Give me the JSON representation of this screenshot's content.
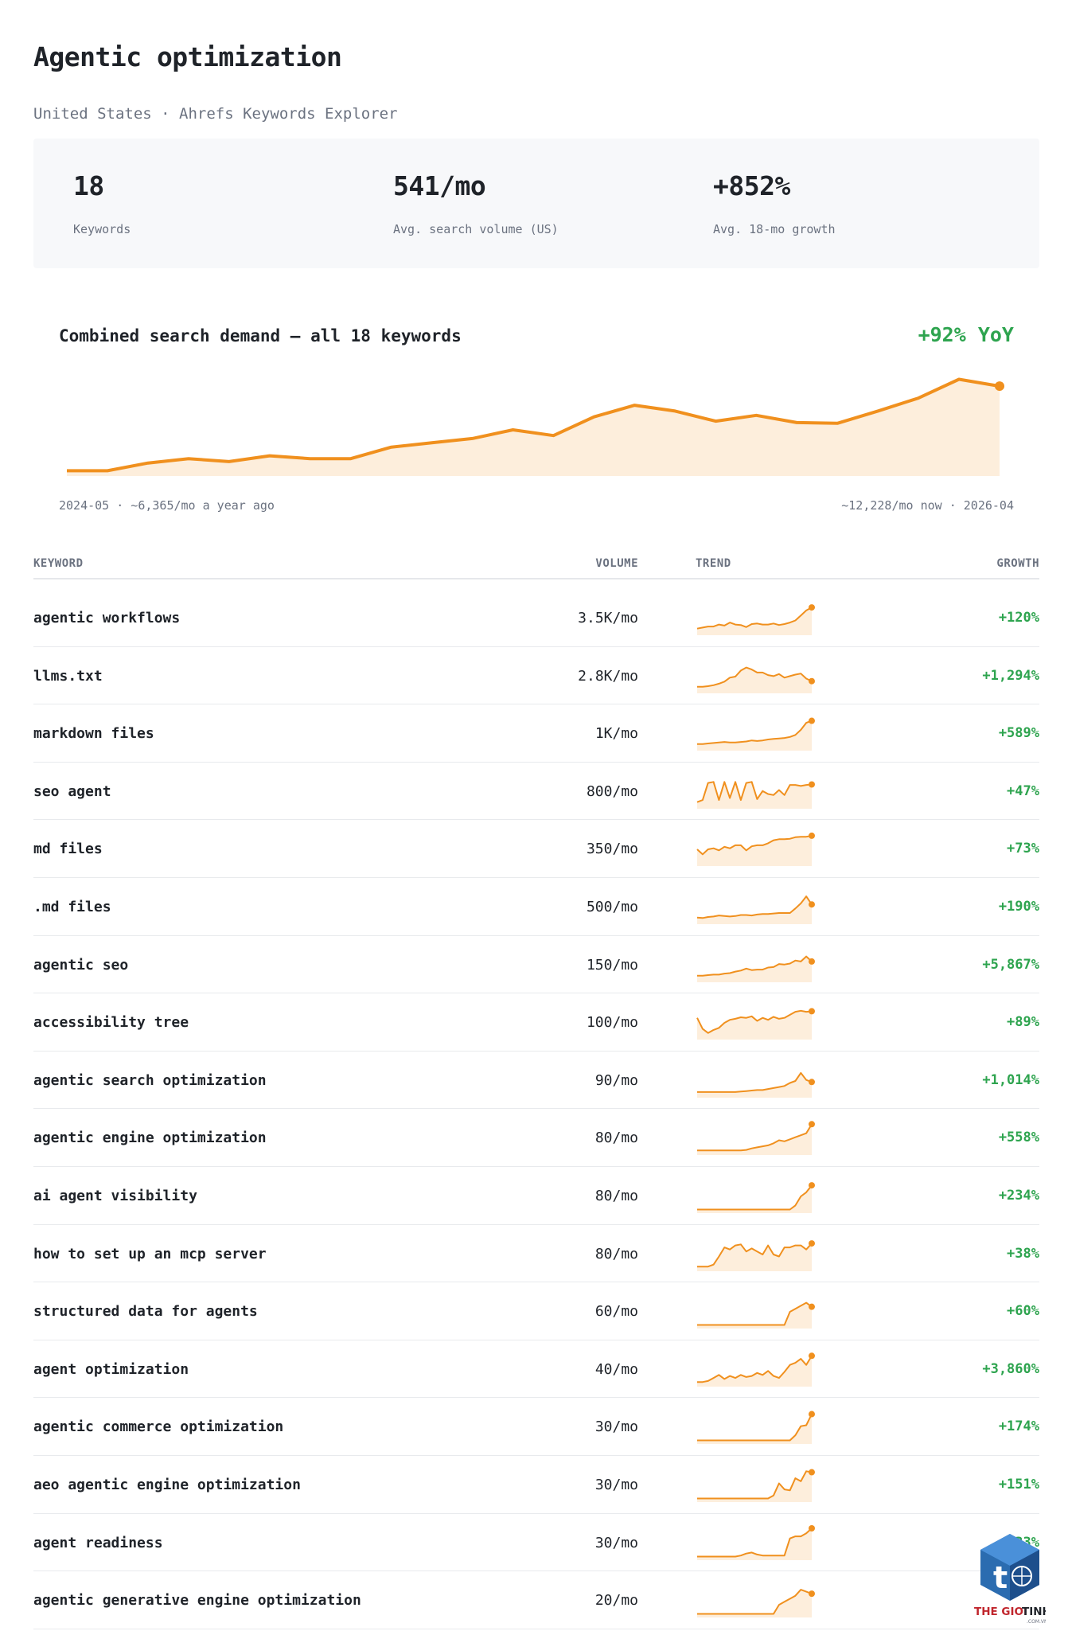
{
  "title": "Agentic optimization",
  "subtitle": "United States · Ahrefs Keywords Explorer",
  "stats": [
    {
      "value": "18",
      "label": "Keywords"
    },
    {
      "value": "541/mo",
      "label": "Avg. search volume (US)"
    },
    {
      "value": "+852%",
      "label": "Avg. 18-mo growth"
    }
  ],
  "colors": {
    "accent": "#f0901e",
    "fill": "#fdeedc",
    "positive": "#2ea44f"
  },
  "chart_data": [
    {
      "type": "area",
      "title": "Combined search demand — all 18 keywords",
      "annotation": "+92% YoY",
      "start_label": "2024-05 · ~6,365/mo a year ago",
      "end_label": "~12,228/mo now · 2026-04",
      "values": [
        6365,
        6365,
        6900,
        7200,
        7000,
        7400,
        7200,
        7200,
        8000,
        8300,
        8600,
        9200,
        8800,
        10100,
        10900,
        10500,
        9800,
        10200,
        9700,
        9650,
        10500,
        11400,
        12700,
        12228
      ],
      "ylim": [
        6000,
        13500
      ],
      "grid": false
    },
    {
      "type": "table",
      "columns": [
        "KEYWORD",
        "VOLUME",
        "TREND",
        "GROWTH"
      ],
      "rows": [
        {
          "keyword": "agentic workflows",
          "volume": "3.5K/mo",
          "growth": "+120%",
          "trend": [
            10,
            12,
            14,
            14,
            18,
            16,
            22,
            18,
            17,
            13,
            19,
            20,
            18,
            18,
            20,
            17,
            19,
            22,
            26,
            36,
            46,
            52
          ]
        },
        {
          "keyword": "llms.txt",
          "volume": "2.8K/mo",
          "growth": "+1,294%",
          "trend": [
            10,
            10,
            11,
            13,
            16,
            20,
            28,
            30,
            42,
            48,
            44,
            38,
            38,
            33,
            31,
            35,
            28,
            31,
            34,
            36,
            26,
            21
          ]
        },
        {
          "keyword": "markdown files",
          "volume": "1K/mo",
          "growth": "+589%",
          "trend": [
            10,
            10,
            11,
            12,
            13,
            14,
            13,
            13,
            14,
            15,
            17,
            16,
            17,
            19,
            20,
            21,
            22,
            24,
            28,
            38,
            52,
            56
          ]
        },
        {
          "keyword": "seo agent",
          "volume": "800/mo",
          "growth": "+47%",
          "trend": [
            10,
            14,
            48,
            50,
            14,
            50,
            18,
            50,
            14,
            48,
            50,
            16,
            32,
            26,
            24,
            34,
            24,
            44,
            44,
            42,
            44,
            45
          ]
        },
        {
          "keyword": "md files",
          "volume": "350/mo",
          "growth": "+73%",
          "trend": [
            30,
            20,
            30,
            32,
            28,
            35,
            32,
            38,
            38,
            28,
            36,
            38,
            38,
            42,
            48,
            50,
            50,
            51,
            54,
            55,
            55,
            57
          ]
        },
        {
          "keyword": ".md files",
          "volume": "500/mo",
          "growth": "+190%",
          "trend": [
            10,
            9,
            11,
            12,
            14,
            13,
            12,
            13,
            15,
            15,
            14,
            16,
            17,
            17,
            18,
            19,
            19,
            19,
            28,
            38,
            52,
            36
          ]
        },
        {
          "keyword": "agentic seo",
          "volume": "150/mo",
          "growth": "+5,867%",
          "trend": [
            10,
            10,
            11,
            12,
            12,
            14,
            15,
            18,
            20,
            24,
            21,
            22,
            22,
            26,
            27,
            33,
            32,
            34,
            40,
            38,
            48,
            38
          ]
        },
        {
          "keyword": "accessibility tree",
          "volume": "100/mo",
          "growth": "+89%",
          "trend": [
            40,
            18,
            10,
            16,
            20,
            30,
            36,
            38,
            41,
            40,
            43,
            34,
            40,
            36,
            42,
            38,
            40,
            46,
            52,
            54,
            52,
            53
          ]
        },
        {
          "keyword": "agentic search optimization",
          "volume": "90/mo",
          "growth": "+1,014%",
          "trend": [
            8,
            8,
            8,
            8,
            8,
            8,
            8,
            8,
            9,
            10,
            11,
            12,
            12,
            14,
            16,
            18,
            20,
            26,
            30,
            46,
            32,
            28
          ]
        },
        {
          "keyword": "agentic engine optimization",
          "volume": "80/mo",
          "growth": "+558%",
          "trend": [
            6,
            6,
            6,
            6,
            6,
            6,
            6,
            6,
            6,
            7,
            10,
            12,
            14,
            16,
            20,
            26,
            24,
            28,
            32,
            36,
            40,
            58
          ]
        },
        {
          "keyword": "ai agent visibility",
          "volume": "80/mo",
          "growth": "+234%",
          "trend": [
            4,
            4,
            4,
            4,
            4,
            4,
            4,
            4,
            4,
            4,
            4,
            4,
            4,
            4,
            4,
            4,
            4,
            4,
            12,
            30,
            38,
            52
          ]
        },
        {
          "keyword": "how to set up an mcp server",
          "volume": "80/mo",
          "growth": "+38%",
          "trend": [
            6,
            6,
            6,
            10,
            26,
            44,
            40,
            48,
            50,
            36,
            42,
            36,
            30,
            48,
            30,
            26,
            44,
            44,
            48,
            48,
            40,
            52
          ]
        },
        {
          "keyword": "structured data for agents",
          "volume": "60/mo",
          "growth": "+60%",
          "trend": [
            4,
            4,
            4,
            4,
            4,
            4,
            4,
            4,
            4,
            4,
            4,
            4,
            4,
            4,
            4,
            4,
            4,
            30,
            36,
            42,
            48,
            40
          ]
        },
        {
          "keyword": "agent optimization",
          "volume": "40/mo",
          "growth": "+3,860%",
          "trend": [
            6,
            6,
            8,
            14,
            20,
            12,
            18,
            14,
            20,
            16,
            18,
            24,
            20,
            28,
            18,
            14,
            26,
            40,
            44,
            52,
            40,
            58
          ]
        },
        {
          "keyword": "agentic commerce optimization",
          "volume": "30/mo",
          "growth": "+174%",
          "trend": [
            4,
            4,
            4,
            4,
            4,
            4,
            4,
            4,
            4,
            4,
            4,
            4,
            4,
            4,
            4,
            4,
            4,
            4,
            14,
            32,
            34,
            56
          ]
        },
        {
          "keyword": "aeo agentic engine optimization",
          "volume": "30/mo",
          "growth": "+151%",
          "trend": [
            4,
            4,
            4,
            4,
            4,
            4,
            4,
            4,
            4,
            4,
            4,
            4,
            4,
            4,
            10,
            34,
            22,
            20,
            44,
            38,
            58,
            56
          ]
        },
        {
          "keyword": "agent readiness",
          "volume": "30/mo",
          "growth": "+833%",
          "trend": [
            4,
            4,
            4,
            4,
            4,
            4,
            4,
            4,
            6,
            10,
            12,
            8,
            6,
            6,
            6,
            6,
            6,
            40,
            44,
            44,
            50,
            60
          ]
        },
        {
          "keyword": "agentic generative engine optimization",
          "volume": "20/mo",
          "growth": "",
          "trend": [
            4,
            4,
            4,
            4,
            4,
            4,
            4,
            4,
            4,
            4,
            4,
            4,
            4,
            4,
            4,
            22,
            28,
            34,
            40,
            52,
            48,
            44
          ]
        }
      ]
    }
  ],
  "logo": {
    "text": "THE GIOI TINHOC",
    "tld": ".COM.VN"
  }
}
